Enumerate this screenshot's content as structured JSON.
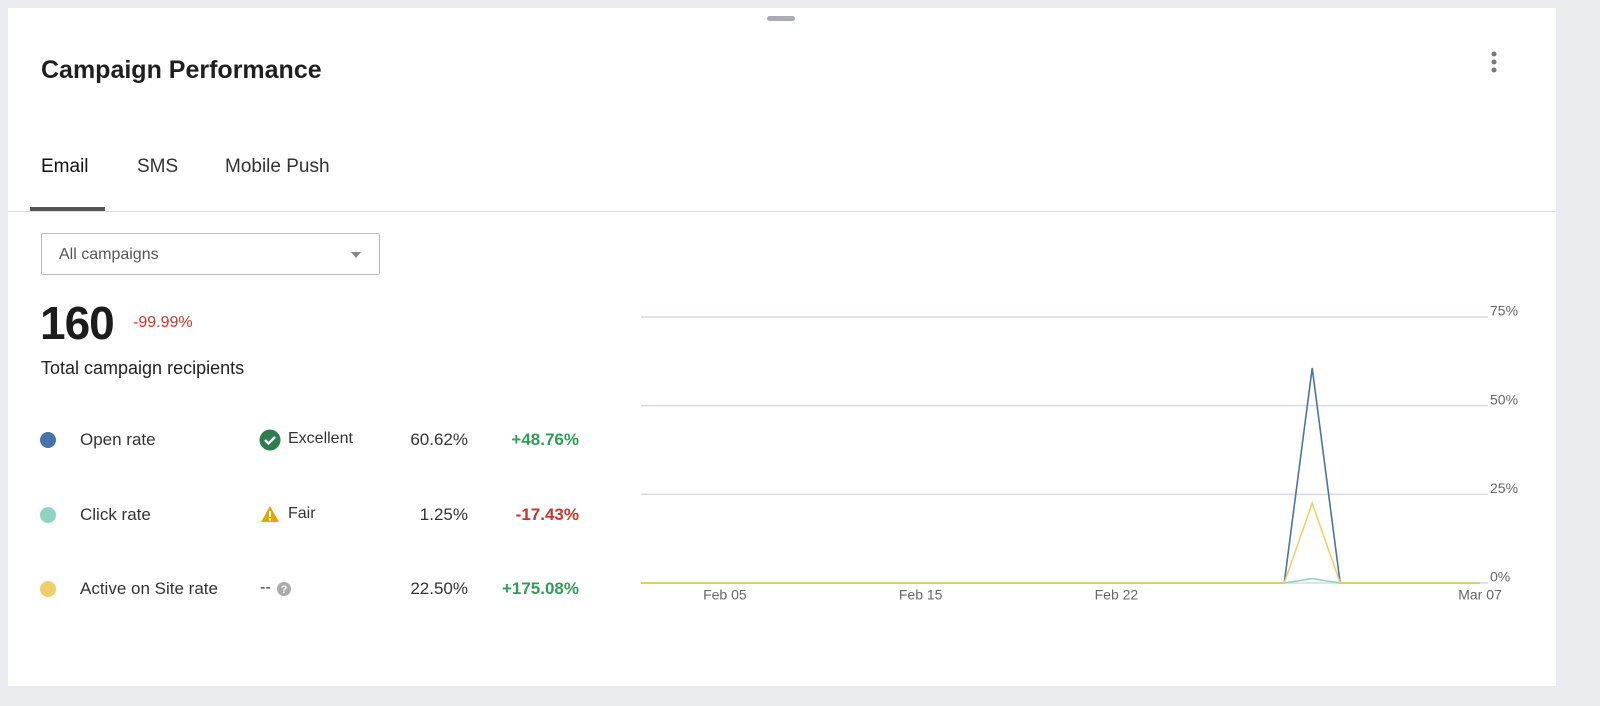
{
  "header": {
    "title": "Campaign Performance"
  },
  "tabs": [
    "Email",
    "SMS",
    "Mobile Push"
  ],
  "dropdown": "All campaigns",
  "summary": {
    "value": 160,
    "change": "-99.99%",
    "label": "Total campaign recipients"
  },
  "metrics": [
    {
      "name": "Open rate",
      "rating": "Excellent",
      "value": "60.62%",
      "change": "+48.76%"
    },
    {
      "name": "Click rate",
      "rating": "Fair",
      "value": "1.25%",
      "change": "-17.43%"
    },
    {
      "name": "Active on Site rate",
      "rating": "--",
      "value": "22.50%",
      "change": "+175.08%"
    }
  ],
  "chart_data": {
    "type": "line",
    "categories": [
      null,
      null,
      null,
      "Feb 05",
      null,
      null,
      null,
      null,
      null,
      null,
      "Feb 15",
      null,
      null,
      null,
      null,
      null,
      null,
      "Feb 22",
      null,
      null,
      null,
      null,
      null,
      null,
      null,
      null,
      null,
      null,
      null,
      null,
      "Mar 07"
    ],
    "series": [
      {
        "name": "Open rate",
        "color": "#4a72ad",
        "values": [
          0,
          0,
          0,
          0,
          0,
          0,
          0,
          0,
          0,
          0,
          0,
          0,
          0,
          0,
          0,
          0,
          0,
          0,
          0,
          0,
          0,
          0,
          0,
          0,
          60.62,
          0,
          0,
          0,
          0,
          0,
          0
        ]
      },
      {
        "name": "Click rate",
        "color": "#8fd3c0",
        "values": [
          0,
          0,
          0,
          0,
          0,
          0,
          0,
          0,
          0,
          0,
          0,
          0,
          0,
          0,
          0,
          0,
          0,
          0,
          0,
          0,
          0,
          0,
          0,
          0,
          1.25,
          0,
          0,
          0,
          0,
          0,
          0
        ]
      },
      {
        "name": "Active on Site rate",
        "color": "#f0cf6a",
        "values": [
          0,
          0,
          0,
          0,
          0,
          0,
          0,
          0,
          0,
          0,
          0,
          0,
          0,
          0,
          0,
          0,
          0,
          0,
          0,
          0,
          0,
          0,
          0,
          0,
          22.5,
          0,
          0,
          0,
          0,
          0,
          0
        ]
      }
    ],
    "ylim": [
      0,
      75
    ],
    "yticks": [
      {
        "value": 0,
        "label": "0%"
      },
      {
        "value": 25,
        "label": "25%"
      },
      {
        "value": 50,
        "label": "50%"
      },
      {
        "value": 75,
        "label": "75%"
      }
    ],
    "grid": true
  }
}
